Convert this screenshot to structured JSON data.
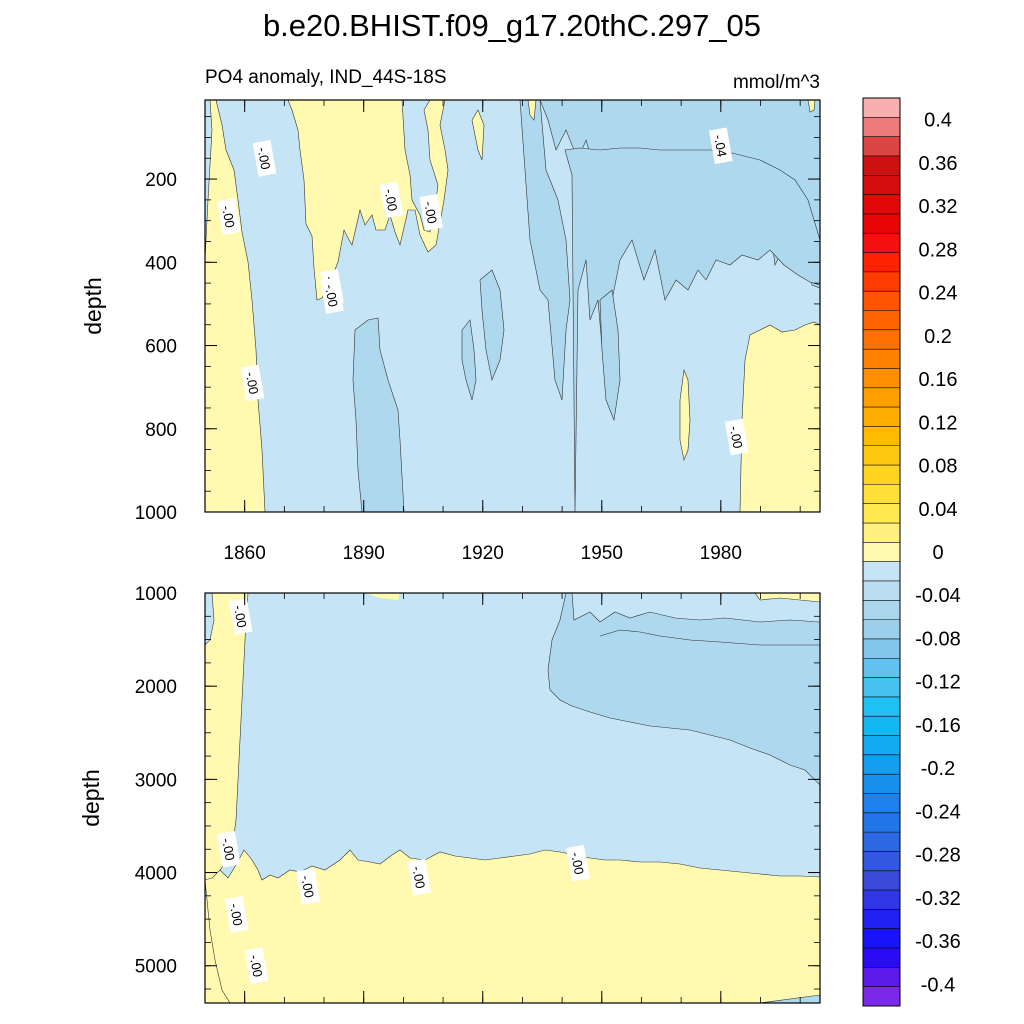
{
  "chart_data": [
    {
      "type": "heatmap",
      "panel": "upper",
      "title": "b.e20.BHIST.f09_g17.20thC.297_05",
      "left_subtitle": "PO4 anomaly, IND_44S-18S",
      "right_subtitle": "mmol/m^3",
      "ylabel": "depth",
      "xlim": [
        1850,
        2005
      ],
      "ylim": [
        1000,
        10
      ],
      "x_ticks": [
        1860,
        1890,
        1920,
        1950,
        1980
      ],
      "x_tick_labels": [
        "1860",
        "1890",
        "1920",
        "1950",
        "1980"
      ],
      "y_ticks": [
        200,
        400,
        600,
        800,
        1000
      ],
      "y_tick_labels": [
        "200",
        "400",
        "600",
        "800",
        "1000"
      ],
      "contour_labels": [
        {
          "text": "-.00",
          "x": 1856,
          "y": 290
        },
        {
          "text": "-.00",
          "x": 1865,
          "y": 150
        },
        {
          "text": "-.00",
          "x": 1882,
          "y": 460
        },
        {
          "text": "-.00",
          "x": 1882,
          "y": 480
        },
        {
          "text": "-.00",
          "x": 1897,
          "y": 250
        },
        {
          "text": "-.00",
          "x": 1907,
          "y": 280
        },
        {
          "text": "-.00",
          "x": 1862,
          "y": 690
        },
        {
          "text": "-.04",
          "x": 1980,
          "y": 120
        },
        {
          "text": "-.00",
          "x": 1984,
          "y": 820
        }
      ]
    },
    {
      "type": "heatmap",
      "panel": "lower",
      "ylabel": "depth",
      "xlim": [
        1850,
        2005
      ],
      "ylim": [
        5400,
        1000
      ],
      "y_ticks": [
        1000,
        2000,
        3000,
        4000,
        5000
      ],
      "y_tick_labels": [
        "1000",
        "2000",
        "3000",
        "4000",
        "5000"
      ],
      "contour_labels": [
        {
          "text": "-.00",
          "x": 1859,
          "y": 1250
        },
        {
          "text": "-.00",
          "x": 1856,
          "y": 3750
        },
        {
          "text": "-.00",
          "x": 1876,
          "y": 4150
        },
        {
          "text": "-.00",
          "x": 1904,
          "y": 4050
        },
        {
          "text": "-.00",
          "x": 1944,
          "y": 3900
        },
        {
          "text": "-.00",
          "x": 1858,
          "y": 4450
        },
        {
          "text": "-.00",
          "x": 1863,
          "y": 5000
        }
      ]
    }
  ],
  "colorbar": {
    "min": -0.42,
    "max": 0.42,
    "step": 0.02,
    "labels": [
      "0.4",
      "0.36",
      "0.32",
      "0.28",
      "0.24",
      "0.2",
      "0.16",
      "0.12",
      "0.08",
      "0.04",
      "0",
      "-0.04",
      "-0.08",
      "-0.12",
      "-0.16",
      "-0.2",
      "-0.24",
      "-0.28",
      "-0.32",
      "-0.36",
      "-0.4"
    ],
    "label_values": [
      0.4,
      0.36,
      0.32,
      0.28,
      0.24,
      0.2,
      0.16,
      0.12,
      0.08,
      0.04,
      0,
      -0.04,
      -0.08,
      -0.12,
      -0.16,
      -0.2,
      -0.24,
      -0.28,
      -0.32,
      -0.36,
      -0.4
    ],
    "colors_top_to_bottom": [
      "#F7AFB0",
      "#EE7C7D",
      "#DD4444",
      "#CC1111",
      "#D40D0D",
      "#E00808",
      "#EA0505",
      "#F51010",
      "#FF2200",
      "#FF3C00",
      "#FF5500",
      "#FF6400",
      "#FF7200",
      "#FF8200",
      "#FF8F00",
      "#FF9F00",
      "#FFAD00",
      "#FFBB00",
      "#FFC810",
      "#FFD420",
      "#FFE038",
      "#FFE850",
      "#FFF080",
      "#FFFAB0",
      "#C5E4F5",
      "#BADDF2",
      "#ACD6EE",
      "#9CCFEA",
      "#82C6EC",
      "#62C1EE",
      "#48C0F0",
      "#1EC2F2",
      "#14B8F0",
      "#12AAF0",
      "#159DF0",
      "#1890EE",
      "#1D82EC",
      "#2276E8",
      "#2B68E4",
      "#3258DE",
      "#3A4AD8",
      "#2E36E6",
      "#2020F0",
      "#1A12F8",
      "#2A0CF4",
      "#5A1AEA",
      "#7B28E8"
    ]
  },
  "colors": {
    "negative_fill": "#C5E4F5",
    "negative_fill_2": "#ADD8EE",
    "positive_fill": "#FFFAB0",
    "contour_line": "#333333"
  }
}
